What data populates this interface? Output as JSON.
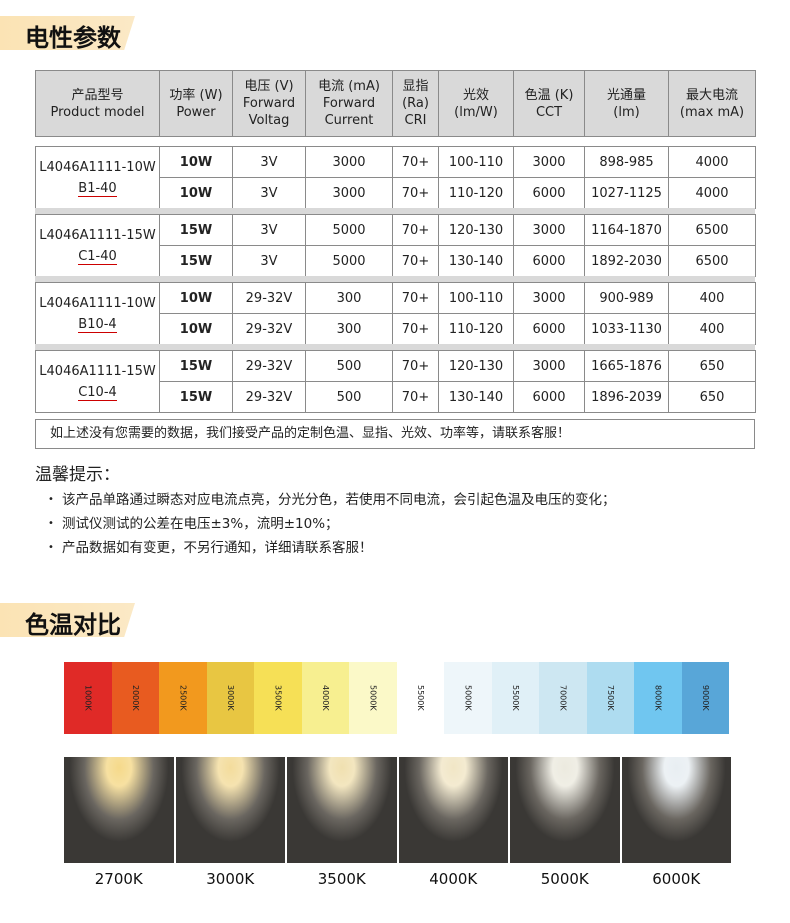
{
  "section1_title": "电性参数",
  "headers": [
    {
      "zh": "产品型号",
      "en": "Product model"
    },
    {
      "zh": "功率 (W)",
      "en": "Power"
    },
    {
      "zh": "电压 (V)",
      "en": "Forward Voltag"
    },
    {
      "zh": "电流 (mA)",
      "en": "Forward Current"
    },
    {
      "zh": "显指",
      "en": "(Ra) CRI"
    },
    {
      "zh": "光效",
      "en": "(lm/W)"
    },
    {
      "zh": "色温 (K)",
      "en": "CCT"
    },
    {
      "zh": "光通量",
      "en": "(lm)"
    },
    {
      "zh": "最大电流",
      "en": "(max  mA)"
    }
  ],
  "groups": [
    {
      "model": "L4046A1111-10W",
      "suffix": "B1-40",
      "rows": [
        [
          "10W",
          "3V",
          "3000",
          "70+",
          "100-110",
          "3000",
          "898-985",
          "4000"
        ],
        [
          "10W",
          "3V",
          "3000",
          "70+",
          "110-120",
          "6000",
          "1027-1125",
          "4000"
        ]
      ]
    },
    {
      "model": "L4046A1111-15W",
      "suffix": "C1-40",
      "rows": [
        [
          "15W",
          "3V",
          "5000",
          "70+",
          "120-130",
          "3000",
          "1164-1870",
          "6500"
        ],
        [
          "15W",
          "3V",
          "5000",
          "70+",
          "130-140",
          "6000",
          "1892-2030",
          "6500"
        ]
      ]
    },
    {
      "model": "L4046A1111-10W",
      "suffix": "B10-4",
      "rows": [
        [
          "10W",
          "29-32V",
          "300",
          "70+",
          "100-110",
          "3000",
          "900-989",
          "400"
        ],
        [
          "10W",
          "29-32V",
          "300",
          "70+",
          "110-120",
          "6000",
          "1033-1130",
          "400"
        ]
      ]
    },
    {
      "model": "L4046A1111-15W",
      "suffix": "C10-4",
      "rows": [
        [
          "15W",
          "29-32V",
          "500",
          "70+",
          "120-130",
          "3000",
          "1665-1876",
          "650"
        ],
        [
          "15W",
          "29-32V",
          "500",
          "70+",
          "130-140",
          "6000",
          "1896-2039",
          "650"
        ]
      ]
    }
  ],
  "note": "如上述没有您需要的数据，我们接受产品的定制色温、显指、光效、功率等，请联系客服！",
  "tips_title": "温馨提示：",
  "tips": [
    "该产品单路通过瞬态对应电流点亮，分光分色，若使用不同电流，会引起色温及电压的变化；",
    "测试仪测试的公差在电压±3%，流明±10%；",
    "产品数据如有变更，不另行通知，详细请联系客服！"
  ],
  "section2_title": "色温对比",
  "color_bar": [
    {
      "label": "1000K",
      "color": "#e02a27"
    },
    {
      "label": "2000K",
      "color": "#e85b20"
    },
    {
      "label": "2500K",
      "color": "#f2991e"
    },
    {
      "label": "3000K",
      "color": "#e8c642"
    },
    {
      "label": "3500K",
      "color": "#f6e056"
    },
    {
      "label": "4000K",
      "color": "#f7ef90"
    },
    {
      "label": "5000K",
      "color": "#fbf9c8"
    },
    {
      "label": "5500K",
      "color": "#ffffff"
    },
    {
      "label": "5000K",
      "color": "#eef6fa"
    },
    {
      "label": "5500K",
      "color": "#e0f0f7"
    },
    {
      "label": "7000K",
      "color": "#cde7f2"
    },
    {
      "label": "7500K",
      "color": "#aedcf0"
    },
    {
      "label": "8000K",
      "color": "#70c6f0"
    },
    {
      "label": "9000K",
      "color": "#58a6d8"
    }
  ],
  "photos": [
    {
      "label": "2700K",
      "color": "#f5d98a"
    },
    {
      "label": "3000K",
      "color": "#f3dc9c"
    },
    {
      "label": "3500K",
      "color": "#f0e0b0"
    },
    {
      "label": "4000K",
      "color": "#f1e6c6"
    },
    {
      "label": "5000K",
      "color": "#eceadf"
    },
    {
      "label": "6000K",
      "color": "#e8eef2"
    }
  ]
}
